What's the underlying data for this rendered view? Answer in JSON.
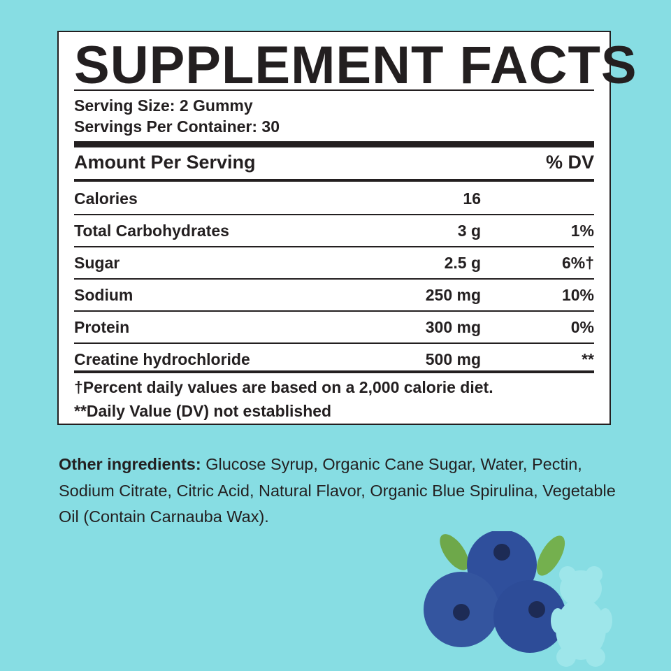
{
  "header": {
    "title": "SUPPLEMENT FACTS"
  },
  "serving": {
    "size": "Serving Size: 2 Gummy",
    "per_container": "Servings Per Container: 30"
  },
  "table": {
    "header": [
      "Amount Per Serving",
      "% DV"
    ],
    "rows": [
      {
        "name": "Calories",
        "amount": "16"
      },
      {
        "name": "Total Carbohydrates",
        "amount": "3 g",
        "dv": "1%"
      },
      {
        "name": "Sugar",
        "amount": "2.5 g",
        "dv": "6%†"
      },
      {
        "name": "Sodium",
        "amount": "250 mg",
        "dv": "10%"
      },
      {
        "name": "Protein",
        "amount": "300 mg",
        "dv": "0%"
      },
      {
        "name": "Creatine hydrochloride",
        "amount": "500 mg",
        "dv": "**"
      }
    ]
  },
  "footnotes": [
    "†Percent daily values are based on a 2,000 calorie diet.",
    "**Daily Value (DV) not established"
  ],
  "ingredients": {
    "label": "Other ingredients:",
    "text": "Glucose Syrup, Organic Cane Sugar, Water, Pectin, Sodium Citrate, Citric Acid, Natural Flavor, Organic Blue Spirulina, Vegetable Oil (Contain Carnauba Wax)."
  }
}
